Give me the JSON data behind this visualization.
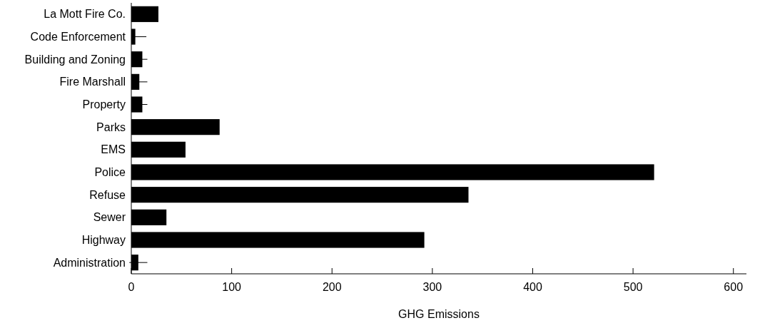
{
  "chart_data": {
    "type": "bar",
    "orientation": "horizontal",
    "xlabel": "GHG Emissions",
    "categories": [
      "La Mott Fire Co.",
      "Code Enforcement",
      "Building and Zoning",
      "Fire Marshall",
      "Property",
      "Parks",
      "EMS",
      "Police",
      "Refuse",
      "Sewer",
      "Highway",
      "Administration"
    ],
    "values": [
      27,
      4,
      11,
      8,
      11,
      88,
      54,
      521,
      336,
      35,
      292,
      7
    ],
    "errors": [
      null,
      [
        0,
        15
      ],
      5,
      [
        0,
        16
      ],
      5,
      null,
      null,
      null,
      null,
      null,
      null,
      9
    ],
    "color": "#000000",
    "xlim": [
      0,
      613
    ],
    "xticks": [
      0,
      100,
      200,
      300,
      400,
      500,
      600
    ],
    "grid": false
  }
}
